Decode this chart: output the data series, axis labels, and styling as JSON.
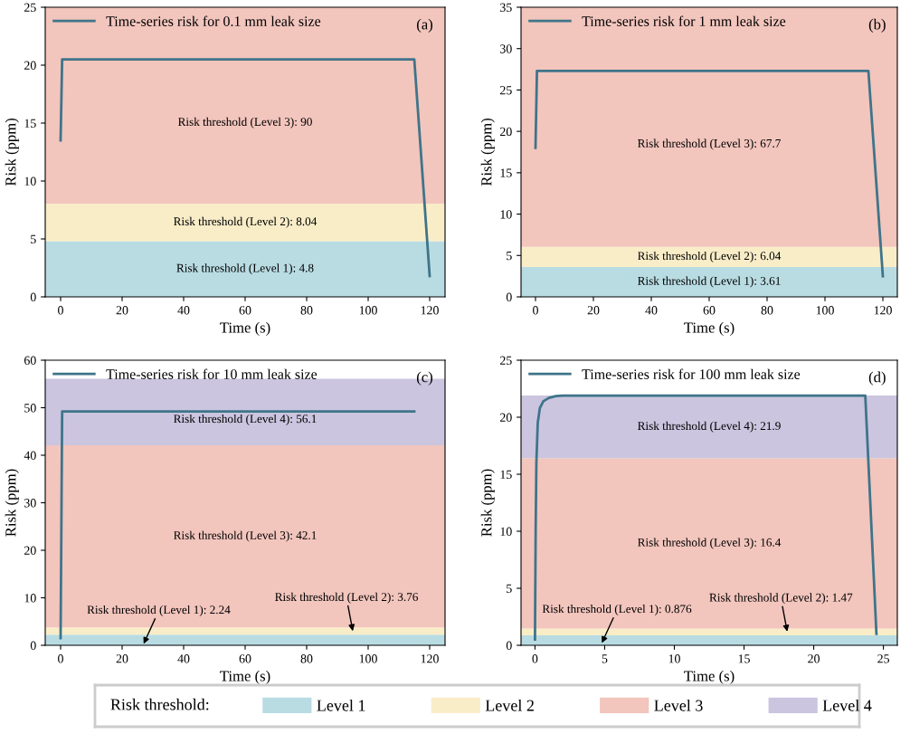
{
  "chart_data": [
    {
      "type": "line",
      "xlabel": "Time (s)",
      "ylabel": "Risk (ppm)",
      "xlim": [
        -5,
        125
      ],
      "ylim": [
        0,
        25
      ],
      "xticks": [
        0,
        20,
        40,
        60,
        80,
        100,
        120
      ],
      "yticks": [
        0,
        5,
        10,
        15,
        20,
        25
      ],
      "legend": "top left",
      "grid": false,
      "series": [
        {
          "name": "Time-series risk for 0.1 mm leak size",
          "color": "#3f7489",
          "x": [
            0,
            0.5,
            115,
            120
          ],
          "values": [
            13.5,
            20.5,
            20.5,
            1.8
          ]
        }
      ],
      "bands": [
        {
          "axis": "y",
          "from": 0,
          "to": 4.8,
          "label": "Risk threshold (Level 1): 4.8",
          "color": "#b9dce3"
        },
        {
          "axis": "y",
          "from": 4.8,
          "to": 8.04,
          "label": "Risk threshold (Level 2): 8.04",
          "color": "#f9edc8"
        },
        {
          "axis": "y",
          "from": 8.04,
          "to": 90,
          "label": "Risk threshold (Level 3): 90",
          "color": "#f2c5bd"
        }
      ],
      "annotations": [
        "(a)"
      ]
    },
    {
      "type": "line",
      "xlabel": "Time (s)",
      "ylabel": "Risk (ppm)",
      "xlim": [
        -5,
        125
      ],
      "ylim": [
        0,
        35
      ],
      "xticks": [
        0,
        20,
        40,
        60,
        80,
        100,
        120
      ],
      "yticks": [
        0,
        5,
        10,
        15,
        20,
        25,
        30,
        35
      ],
      "legend": "top left",
      "grid": false,
      "series": [
        {
          "name": "Time-series risk for 1 mm leak size",
          "color": "#3f7489",
          "x": [
            0,
            0.5,
            115,
            120
          ],
          "values": [
            18,
            27.3,
            27.3,
            2.5
          ]
        }
      ],
      "bands": [
        {
          "axis": "y",
          "from": 0,
          "to": 3.61,
          "label": "Risk threshold (Level 1): 3.61",
          "color": "#b9dce3"
        },
        {
          "axis": "y",
          "from": 3.61,
          "to": 6.04,
          "label": "Risk threshold (Level 2): 6.04",
          "color": "#f9edc8"
        },
        {
          "axis": "y",
          "from": 6.04,
          "to": 67.7,
          "label": "Risk threshold (Level 3): 67.7",
          "color": "#f2c5bd"
        }
      ],
      "annotations": [
        "(b)"
      ]
    },
    {
      "type": "line",
      "xlabel": "Time (s)",
      "ylabel": "Risk (ppm)",
      "xlim": [
        -5,
        125
      ],
      "ylim": [
        0,
        60
      ],
      "xticks": [
        0,
        20,
        40,
        60,
        80,
        100,
        120
      ],
      "yticks": [
        0,
        10,
        20,
        30,
        40,
        50,
        60
      ],
      "legend": "top left",
      "grid": false,
      "series": [
        {
          "name": "Time-series risk for 10 mm leak size",
          "color": "#3f7489",
          "x": [
            0,
            0.5,
            115
          ],
          "values": [
            1.5,
            49.2,
            49.2
          ]
        }
      ],
      "bands": [
        {
          "axis": "y",
          "from": 0,
          "to": 2.24,
          "color": "#b9dce3"
        },
        {
          "axis": "y",
          "from": 2.24,
          "to": 3.76,
          "color": "#f9edc8"
        },
        {
          "axis": "y",
          "from": 3.76,
          "to": 42.1,
          "label": "Risk threshold (Level 3): 42.1",
          "color": "#f2c5bd"
        },
        {
          "axis": "y",
          "from": 42.1,
          "to": 56.1,
          "label": "Risk threshold (Level 4): 56.1",
          "color": "#cbc5df"
        }
      ],
      "annotations": [
        {
          "text": "Risk threshold (Level 1): 2.24",
          "x": 27,
          "y": 0.3
        },
        {
          "text": "Risk threshold (Level 2): 3.76",
          "x": 95,
          "y": 3
        },
        "(c)"
      ]
    },
    {
      "type": "line",
      "xlabel": "Time (s)",
      "ylabel": "Risk (ppm)",
      "xlim": [
        -1,
        26
      ],
      "ylim": [
        0,
        25
      ],
      "xticks": [
        0,
        5,
        10,
        15,
        20,
        25
      ],
      "yticks": [
        0,
        5,
        10,
        15,
        20,
        25
      ],
      "legend": "top left",
      "grid": false,
      "series": [
        {
          "name": "Time-series risk for 100 mm leak size",
          "color": "#3f7489",
          "x": [
            0,
            0.05,
            0.1,
            0.2,
            0.35,
            0.6,
            1,
            1.5,
            2,
            23.7,
            24.5
          ],
          "values": [
            0.5,
            10,
            16,
            19.5,
            20.8,
            21.4,
            21.7,
            21.85,
            21.9,
            21.9,
            1.0
          ]
        }
      ],
      "bands": [
        {
          "axis": "y",
          "from": 0,
          "to": 0.876,
          "color": "#b9dce3"
        },
        {
          "axis": "y",
          "from": 0.876,
          "to": 1.47,
          "color": "#f9edc8"
        },
        {
          "axis": "y",
          "from": 1.47,
          "to": 16.4,
          "label": "Risk threshold (Level 3): 16.4",
          "color": "#f2c5bd"
        },
        {
          "axis": "y",
          "from": 16.4,
          "to": 21.9,
          "label": "Risk threshold (Level 4): 21.9",
          "color": "#cbc5df"
        }
      ],
      "annotations": [
        {
          "text": "Risk threshold (Level 1): 0.876",
          "x": 4.8,
          "y": 0.2
        },
        {
          "text": "Risk threshold (Level 2): 1.47",
          "x": 18.1,
          "y": 1.2
        },
        "(d)"
      ]
    },
    {
      "type": "other",
      "legend_title": "Risk threshold:",
      "categories": [
        "Level 1",
        "Level 2",
        "Level 3",
        "Level 4"
      ],
      "colors": [
        "#b9dce3",
        "#f9edc8",
        "#f2c5bd",
        "#cbc5df"
      ]
    }
  ]
}
